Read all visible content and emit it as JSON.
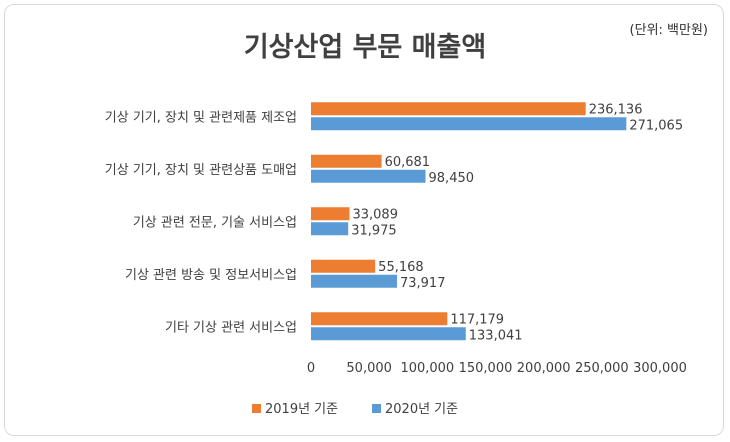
{
  "chart_data": {
    "type": "bar",
    "orientation": "horizontal",
    "title": "기상산업 부문 매출액",
    "unit_note": "(단위: 백만원)",
    "categories": [
      "기상 기기, 장치 및 관련제품 제조업",
      "기상 기기, 장치 및 관련상품 도매업",
      "기상 관련 전문, 기술 서비스업",
      "기상 관련 방송 및 정보서비스업",
      "기타 기상 관련 서비스업"
    ],
    "series": [
      {
        "name": "2019년 기준",
        "color": "#ed7d31",
        "values": [
          236136,
          60681,
          33089,
          55168,
          117179
        ]
      },
      {
        "name": "2020년 기준",
        "color": "#5b9bd5",
        "values": [
          271065,
          98450,
          31975,
          73917,
          133041
        ]
      }
    ],
    "value_labels": [
      [
        "236,136",
        "60,681",
        "33,089",
        "55,168",
        "117,179"
      ],
      [
        "271,065",
        "98,450",
        "31,975",
        "73,917",
        "133,041"
      ]
    ],
    "xlim": [
      0,
      300000
    ],
    "ticks": [
      "0",
      "50,000",
      "100,000",
      "150,000",
      "200,000",
      "250,000",
      "300,000"
    ],
    "tick_values": [
      0,
      50000,
      100000,
      150000,
      200000,
      250000,
      300000
    ],
    "legend_position": "bottom"
  }
}
